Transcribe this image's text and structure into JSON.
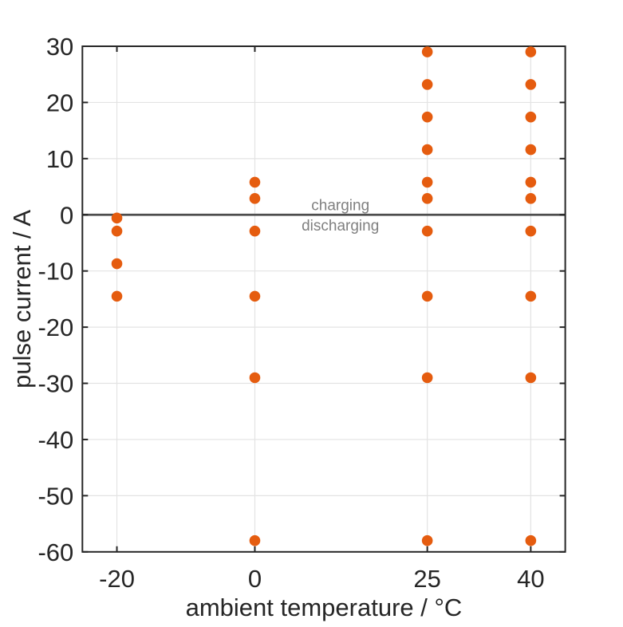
{
  "figure": {
    "background": "#ffffff"
  },
  "chart_data": {
    "type": "scatter",
    "title": "",
    "xlabel": "ambient temperature / °C",
    "ylabel": "pulse current / A",
    "xlim": [
      -25,
      45
    ],
    "ylim": [
      -60,
      30
    ],
    "xticks": [
      -20,
      0,
      25,
      40
    ],
    "yticks": [
      30,
      20,
      10,
      0,
      -10,
      -20,
      -30,
      -40,
      -50,
      -60
    ],
    "grid": true,
    "legend": null,
    "axis_color": "#262626",
    "grid_color": "#e3e3e3",
    "marker": {
      "shape": "circle",
      "color": "#e55c0f",
      "radius_px": 6.8
    },
    "zero_line": {
      "y": 0,
      "color": "#4d4d4d"
    },
    "annotations": [
      {
        "text": "charging",
        "x": 12.4,
        "y": 0,
        "side": "above",
        "color": "#808080"
      },
      {
        "text": "discharging",
        "x": 12.4,
        "y": 0,
        "side": "below",
        "color": "#808080"
      }
    ],
    "series": [
      {
        "name": "pulse-current-test-points",
        "points": [
          [
            -20,
            -0.58
          ],
          [
            -20,
            -2.9
          ],
          [
            -20,
            -8.7
          ],
          [
            -20,
            -14.5
          ],
          [
            0,
            5.8
          ],
          [
            0,
            2.9
          ],
          [
            0,
            -2.9
          ],
          [
            0,
            -14.5
          ],
          [
            0,
            -29
          ],
          [
            0,
            -58
          ],
          [
            25,
            29
          ],
          [
            25,
            23.2
          ],
          [
            25,
            17.4
          ],
          [
            25,
            11.6
          ],
          [
            25,
            5.8
          ],
          [
            25,
            2.9
          ],
          [
            25,
            -2.9
          ],
          [
            25,
            -14.5
          ],
          [
            25,
            -29
          ],
          [
            25,
            -58
          ],
          [
            40,
            29
          ],
          [
            40,
            23.2
          ],
          [
            40,
            17.4
          ],
          [
            40,
            11.6
          ],
          [
            40,
            5.8
          ],
          [
            40,
            2.9
          ],
          [
            40,
            -2.9
          ],
          [
            40,
            -14.5
          ],
          [
            40,
            -29
          ],
          [
            40,
            -58
          ]
        ]
      }
    ]
  }
}
